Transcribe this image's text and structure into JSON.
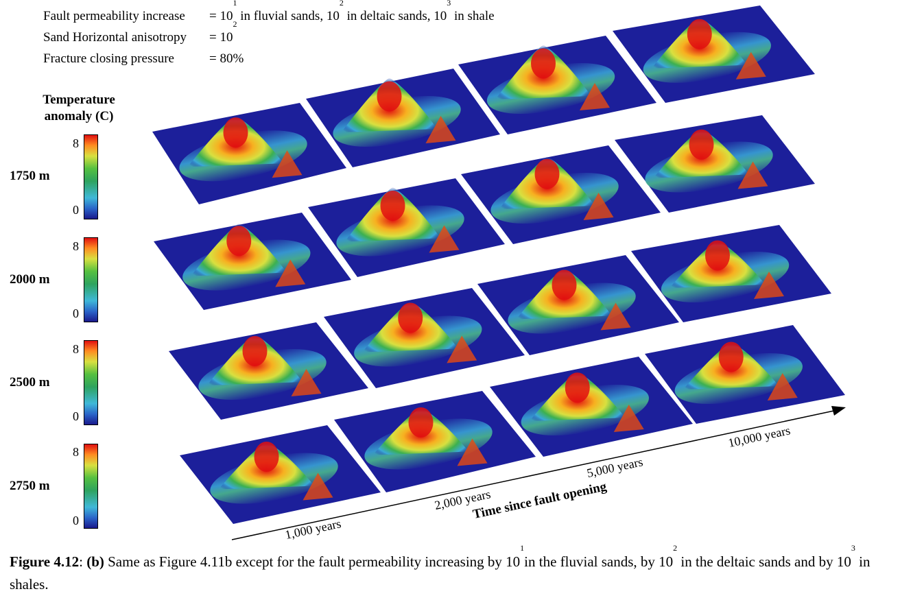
{
  "params": [
    {
      "label": "Fault permeability increase",
      "value_parts": [
        "= 10",
        "1",
        " in fluvial sands, 10",
        "2",
        " in deltaic sands, 10",
        "3",
        " in shale"
      ]
    },
    {
      "label": "Sand Horizontal anisotropy",
      "value_parts": [
        "= 10",
        "2"
      ]
    },
    {
      "label": "Fracture closing pressure",
      "value_parts": [
        "= 80%"
      ]
    }
  ],
  "colorbar": {
    "title_line1": "Temperature",
    "title_line2": "anomaly (C)",
    "max_label": "8",
    "min_label": "0"
  },
  "depths": [
    "1750 m",
    "2000 m",
    "2500 m",
    "2750 m"
  ],
  "time_axis": {
    "title": "Time since fault opening",
    "ticks": [
      "1,000 years",
      "2,000 years",
      "5,000 years",
      "10,000 years"
    ]
  },
  "caption": {
    "fig_label": "Figure 4.12",
    "sep": ": ",
    "sub_label": "(b)",
    "text1": " Same as Figure 4.11b except for the fault permeability increasing by 10",
    "exp1": "1",
    "text2": "in the fluvial sands, by 10",
    "exp2": "2",
    "text3": " in the deltaic sands and by 10",
    "exp3": "3",
    "text4": "  in shales."
  },
  "colors": {
    "panel_base": "#1c1f9a",
    "hot": "#e01010",
    "axis": "#000000"
  }
}
